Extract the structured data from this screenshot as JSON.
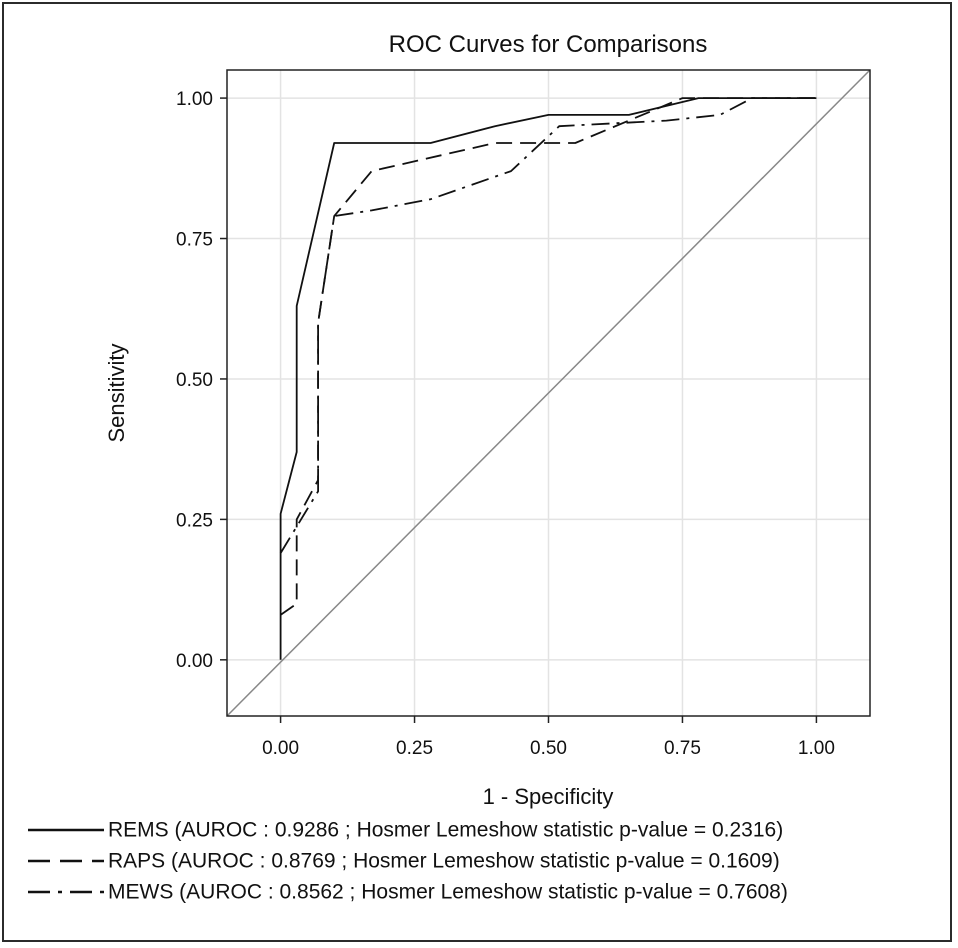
{
  "chart_data": {
    "type": "line",
    "title": "ROC Curves for Comparisons",
    "xlabel": "1 - Specificity",
    "ylabel": "Sensitivity",
    "xlim": [
      -0.1,
      1.1
    ],
    "ylim": [
      -0.1,
      1.05
    ],
    "x_ticks": [
      "0.00",
      "0.25",
      "0.50",
      "0.75",
      "1.00"
    ],
    "y_ticks": [
      "0.00",
      "0.25",
      "0.50",
      "0.75",
      "1.00"
    ],
    "grid": true,
    "reference_line": "diagonal",
    "series": [
      {
        "name": "REMS",
        "legend_label": "REMS (AUROC : 0.9286 ; Hosmer Lemeshow statistic p-value = 0.2316)",
        "dash": "solid",
        "points": [
          [
            0,
            0
          ],
          [
            0,
            0.26
          ],
          [
            0.03,
            0.37
          ],
          [
            0.03,
            0.63
          ],
          [
            0.1,
            0.92
          ],
          [
            0.28,
            0.92
          ],
          [
            0.4,
            0.95
          ],
          [
            0.5,
            0.97
          ],
          [
            0.65,
            0.97
          ],
          [
            0.78,
            1.0
          ],
          [
            1.0,
            1.0
          ]
        ]
      },
      {
        "name": "RAPS",
        "legend_label": "RAPS (AUROC : 0.8769 ; Hosmer Lemeshow statistic p-value = 0.1609)",
        "dash": "dashed",
        "points": [
          [
            0,
            0.08
          ],
          [
            0.03,
            0.1
          ],
          [
            0.03,
            0.25
          ],
          [
            0.07,
            0.32
          ],
          [
            0.07,
            0.6
          ],
          [
            0.1,
            0.79
          ],
          [
            0.17,
            0.87
          ],
          [
            0.4,
            0.92
          ],
          [
            0.55,
            0.92
          ],
          [
            0.75,
            1.0
          ],
          [
            1.0,
            1.0
          ]
        ]
      },
      {
        "name": "MEWS",
        "legend_label": "MEWS (AUROC : 0.8562 ; Hosmer Lemeshow statistic p-value = 0.7608)",
        "dash": "dashdot",
        "points": [
          [
            0,
            0.19
          ],
          [
            0.07,
            0.3
          ],
          [
            0.07,
            0.6
          ],
          [
            0.1,
            0.79
          ],
          [
            0.17,
            0.8
          ],
          [
            0.28,
            0.82
          ],
          [
            0.43,
            0.87
          ],
          [
            0.52,
            0.95
          ],
          [
            0.72,
            0.96
          ],
          [
            0.82,
            0.97
          ],
          [
            0.88,
            1.0
          ],
          [
            1.0,
            1.0
          ]
        ]
      }
    ]
  }
}
